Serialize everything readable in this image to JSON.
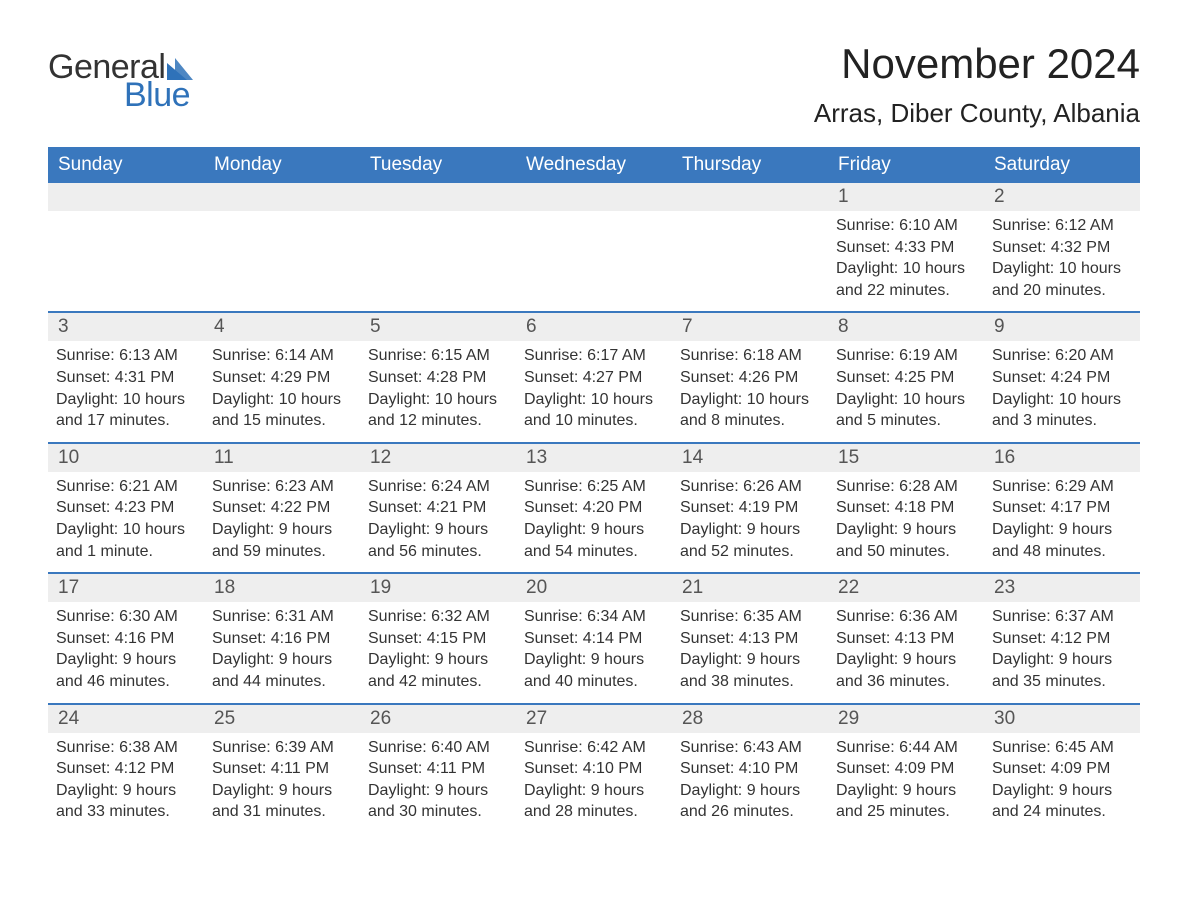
{
  "brand": {
    "general": "General",
    "blue": "Blue",
    "sail_color": "#2f72b9"
  },
  "title": "November 2024",
  "location": "Arras, Diber County, Albania",
  "header_bg": "#3a78be",
  "header_text_color": "#ffffff",
  "row_border_color": "#3a78be",
  "daynum_bg": "#eeeeee",
  "body_text_color": "#333333",
  "background_color": "#ffffff",
  "font_family": "Arial",
  "title_fontsize": 42,
  "location_fontsize": 26,
  "weekday_fontsize": 19,
  "cell_fontsize": 16,
  "weekdays": [
    "Sunday",
    "Monday",
    "Tuesday",
    "Wednesday",
    "Thursday",
    "Friday",
    "Saturday"
  ],
  "first_weekday_index": 5,
  "days_in_month": 30,
  "days": {
    "1": {
      "sunrise": "6:10 AM",
      "sunset": "4:33 PM",
      "daylight": "10 hours and 22 minutes."
    },
    "2": {
      "sunrise": "6:12 AM",
      "sunset": "4:32 PM",
      "daylight": "10 hours and 20 minutes."
    },
    "3": {
      "sunrise": "6:13 AM",
      "sunset": "4:31 PM",
      "daylight": "10 hours and 17 minutes."
    },
    "4": {
      "sunrise": "6:14 AM",
      "sunset": "4:29 PM",
      "daylight": "10 hours and 15 minutes."
    },
    "5": {
      "sunrise": "6:15 AM",
      "sunset": "4:28 PM",
      "daylight": "10 hours and 12 minutes."
    },
    "6": {
      "sunrise": "6:17 AM",
      "sunset": "4:27 PM",
      "daylight": "10 hours and 10 minutes."
    },
    "7": {
      "sunrise": "6:18 AM",
      "sunset": "4:26 PM",
      "daylight": "10 hours and 8 minutes."
    },
    "8": {
      "sunrise": "6:19 AM",
      "sunset": "4:25 PM",
      "daylight": "10 hours and 5 minutes."
    },
    "9": {
      "sunrise": "6:20 AM",
      "sunset": "4:24 PM",
      "daylight": "10 hours and 3 minutes."
    },
    "10": {
      "sunrise": "6:21 AM",
      "sunset": "4:23 PM",
      "daylight": "10 hours and 1 minute."
    },
    "11": {
      "sunrise": "6:23 AM",
      "sunset": "4:22 PM",
      "daylight": "9 hours and 59 minutes."
    },
    "12": {
      "sunrise": "6:24 AM",
      "sunset": "4:21 PM",
      "daylight": "9 hours and 56 minutes."
    },
    "13": {
      "sunrise": "6:25 AM",
      "sunset": "4:20 PM",
      "daylight": "9 hours and 54 minutes."
    },
    "14": {
      "sunrise": "6:26 AM",
      "sunset": "4:19 PM",
      "daylight": "9 hours and 52 minutes."
    },
    "15": {
      "sunrise": "6:28 AM",
      "sunset": "4:18 PM",
      "daylight": "9 hours and 50 minutes."
    },
    "16": {
      "sunrise": "6:29 AM",
      "sunset": "4:17 PM",
      "daylight": "9 hours and 48 minutes."
    },
    "17": {
      "sunrise": "6:30 AM",
      "sunset": "4:16 PM",
      "daylight": "9 hours and 46 minutes."
    },
    "18": {
      "sunrise": "6:31 AM",
      "sunset": "4:16 PM",
      "daylight": "9 hours and 44 minutes."
    },
    "19": {
      "sunrise": "6:32 AM",
      "sunset": "4:15 PM",
      "daylight": "9 hours and 42 minutes."
    },
    "20": {
      "sunrise": "6:34 AM",
      "sunset": "4:14 PM",
      "daylight": "9 hours and 40 minutes."
    },
    "21": {
      "sunrise": "6:35 AM",
      "sunset": "4:13 PM",
      "daylight": "9 hours and 38 minutes."
    },
    "22": {
      "sunrise": "6:36 AM",
      "sunset": "4:13 PM",
      "daylight": "9 hours and 36 minutes."
    },
    "23": {
      "sunrise": "6:37 AM",
      "sunset": "4:12 PM",
      "daylight": "9 hours and 35 minutes."
    },
    "24": {
      "sunrise": "6:38 AM",
      "sunset": "4:12 PM",
      "daylight": "9 hours and 33 minutes."
    },
    "25": {
      "sunrise": "6:39 AM",
      "sunset": "4:11 PM",
      "daylight": "9 hours and 31 minutes."
    },
    "26": {
      "sunrise": "6:40 AM",
      "sunset": "4:11 PM",
      "daylight": "9 hours and 30 minutes."
    },
    "27": {
      "sunrise": "6:42 AM",
      "sunset": "4:10 PM",
      "daylight": "9 hours and 28 minutes."
    },
    "28": {
      "sunrise": "6:43 AM",
      "sunset": "4:10 PM",
      "daylight": "9 hours and 26 minutes."
    },
    "29": {
      "sunrise": "6:44 AM",
      "sunset": "4:09 PM",
      "daylight": "9 hours and 25 minutes."
    },
    "30": {
      "sunrise": "6:45 AM",
      "sunset": "4:09 PM",
      "daylight": "9 hours and 24 minutes."
    }
  },
  "labels": {
    "sunrise_prefix": "Sunrise: ",
    "sunset_prefix": "Sunset: ",
    "daylight_prefix": "Daylight: "
  }
}
